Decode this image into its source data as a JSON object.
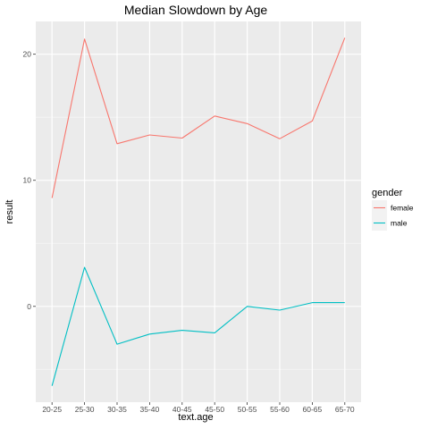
{
  "chart_data": {
    "type": "line",
    "title": "Median Slowdown by Age",
    "xlabel": "text.age",
    "ylabel": "result",
    "categories": [
      "20-25",
      "25-30",
      "30-35",
      "35-40",
      "40-45",
      "45-50",
      "50-55",
      "55-60",
      "60-65",
      "65-70"
    ],
    "series": [
      {
        "name": "female",
        "color": "#F8766D",
        "values": [
          8.6,
          21.2,
          12.9,
          13.6,
          13.35,
          15.1,
          14.5,
          13.3,
          14.7,
          21.3
        ]
      },
      {
        "name": "male",
        "color": "#00BFC4",
        "values": [
          -6.3,
          3.1,
          -3.0,
          -2.2,
          -1.9,
          -2.1,
          0.0,
          -0.3,
          0.3,
          0.3
        ]
      }
    ],
    "ylim": [
      -7.6,
      22.6
    ],
    "yticks": [
      0,
      10,
      20
    ],
    "ytick_labels": [
      "0",
      "10",
      "20"
    ],
    "grid": true,
    "legend": {
      "title": "gender",
      "position": "right"
    },
    "colors": {
      "panel_bg": "#EBEBEB",
      "grid_major": "#FFFFFF",
      "grid_minor": "#F5F5F5"
    }
  }
}
